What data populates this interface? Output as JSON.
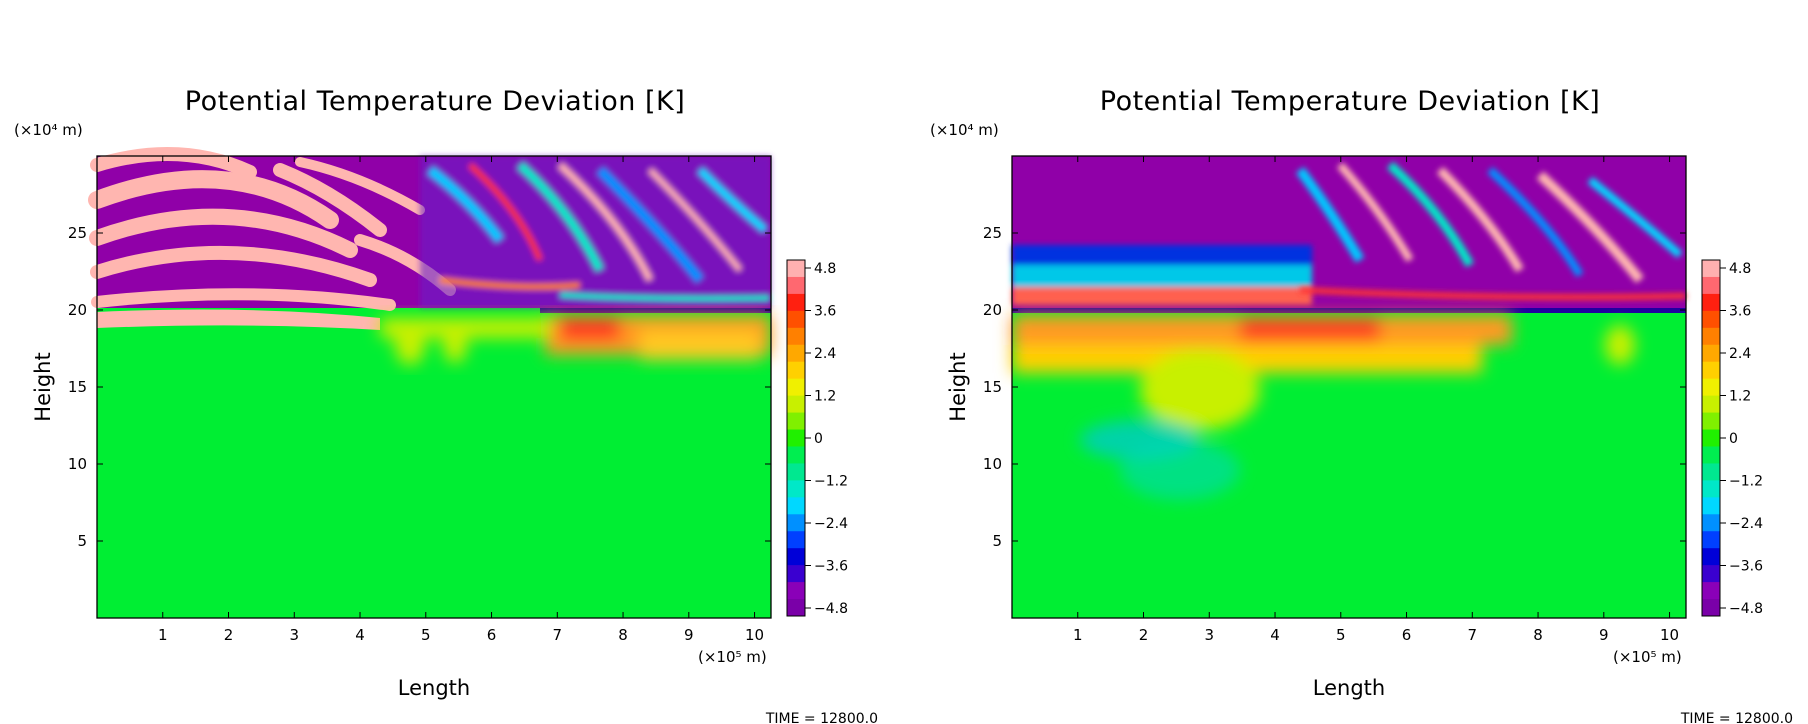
{
  "chart_data": [
    {
      "type": "heatmap",
      "panel": "left",
      "title": "Potential Temperature Deviation [K]",
      "xlabel": "Length",
      "ylabel": "Height",
      "x_unit_label": "(×10⁵ m)",
      "y_unit_label": "(×10⁴ m)",
      "x_ticks": [
        1,
        2,
        3,
        4,
        5,
        6,
        7,
        8,
        9,
        10
      ],
      "y_ticks": [
        5,
        10,
        15,
        20,
        25
      ],
      "xlim": [
        0,
        10.25
      ],
      "ylim": [
        0,
        30
      ],
      "colorbar": {
        "ticks": [
          "4.8",
          "3.6",
          "2.4",
          "1.2",
          "0",
          "−1.2",
          "−2.4",
          "−3.6",
          "−4.8"
        ],
        "range": [
          -4.8,
          4.8
        ]
      },
      "time_label": "TIME = 12800.0",
      "features": {
        "tropopause_height": 20,
        "stratosphere_banded_wave_pattern": true,
        "troposphere_near_zero": true,
        "warm_anomaly_x_range": [
          7,
          10.25
        ]
      }
    },
    {
      "type": "heatmap",
      "panel": "right",
      "title": "Potential Temperature Deviation [K]",
      "xlabel": "Length",
      "ylabel": "Height",
      "x_unit_label": "(×10⁵ m)",
      "y_unit_label": "(×10⁴ m)",
      "x_ticks": [
        1,
        2,
        3,
        4,
        5,
        6,
        7,
        8,
        9,
        10
      ],
      "y_ticks": [
        5,
        10,
        15,
        20,
        25
      ],
      "xlim": [
        0,
        10.25
      ],
      "ylim": [
        0,
        30
      ],
      "colorbar": {
        "ticks": [
          "4.8",
          "3.6",
          "2.4",
          "1.2",
          "0",
          "−1.2",
          "−2.4",
          "−3.6",
          "−4.8"
        ],
        "range": [
          -4.8,
          4.8
        ]
      },
      "time_label": "TIME = 12800.0",
      "features": {
        "tropopause_height": 20,
        "stratosphere_uniform_cold_region_x_range": [
          0,
          4.3
        ],
        "troposphere_near_zero": true,
        "warm_anomaly_x_range": [
          0,
          7.5
        ]
      }
    }
  ],
  "colors": {
    "palette_low_to_high": [
      "#7a00a8",
      "#8a00b8",
      "#3a00d0",
      "#0000d8",
      "#0040ff",
      "#0090ff",
      "#00d8ff",
      "#00e8c8",
      "#00e890",
      "#00ee50",
      "#20f000",
      "#80f000",
      "#c8f000",
      "#f0f000",
      "#ffd000",
      "#ffa800",
      "#ff8000",
      "#ff5000",
      "#ff2010",
      "#ff6870",
      "#ffb0b0"
    ],
    "background_green": "#00ee33",
    "stratosphere_purple": "#9000a8",
    "stratosphere_pink": "#ffb6b0",
    "warm_orange": "#ff9a20"
  }
}
